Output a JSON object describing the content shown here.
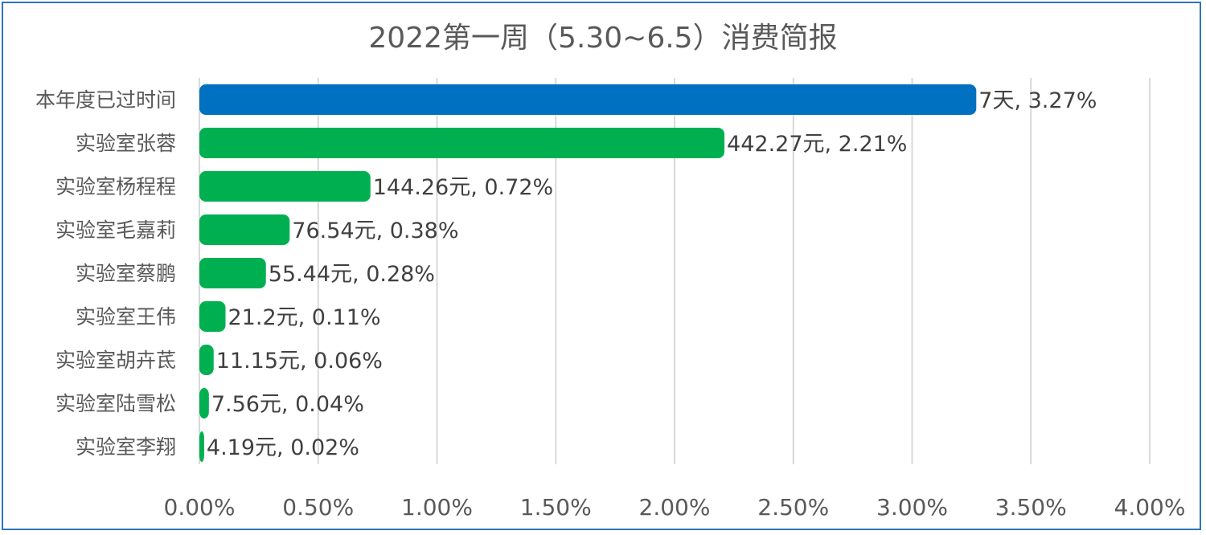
{
  "chart_data": {
    "type": "bar",
    "orientation": "horizontal",
    "title": "2022第一周（5.30~6.5）消费简报",
    "categories": [
      "本年度已过时间",
      "实验室张蓉",
      "实验室杨程程",
      "实验室毛嘉莉",
      "实验室蔡鹏",
      "实验室王伟",
      "实验室胡卉茋",
      "实验室陆雪松",
      "实验室李翔"
    ],
    "values": [
      3.27,
      2.21,
      0.72,
      0.38,
      0.28,
      0.11,
      0.06,
      0.04,
      0.02
    ],
    "value_unit": "%",
    "data_labels": [
      "7天, 3.27%",
      "442.27元, 2.21%",
      "144.26元, 0.72%",
      "76.54元, 0.38%",
      "55.44元, 0.28%",
      "21.2元, 0.11%",
      "11.15元, 0.06%",
      "7.56元, 0.04%",
      "4.19元, 0.02%"
    ],
    "bar_colors": [
      "#0070c0",
      "#00b050",
      "#00b050",
      "#00b050",
      "#00b050",
      "#00b050",
      "#00b050",
      "#00b050",
      "#00b050"
    ],
    "xlim": [
      0,
      4
    ],
    "x_ticks": [
      0,
      0.5,
      1,
      1.5,
      2,
      2.5,
      3,
      3.5,
      4
    ],
    "x_tick_labels": [
      "0.00%",
      "0.50%",
      "1.00%",
      "1.50%",
      "2.00%",
      "2.50%",
      "3.00%",
      "3.50%",
      "4.00%"
    ],
    "grid": "vertical",
    "legend": "none"
  },
  "colors": {
    "frame": "#2e75b6",
    "grid": "#d9d9d9",
    "text": "#595959"
  }
}
